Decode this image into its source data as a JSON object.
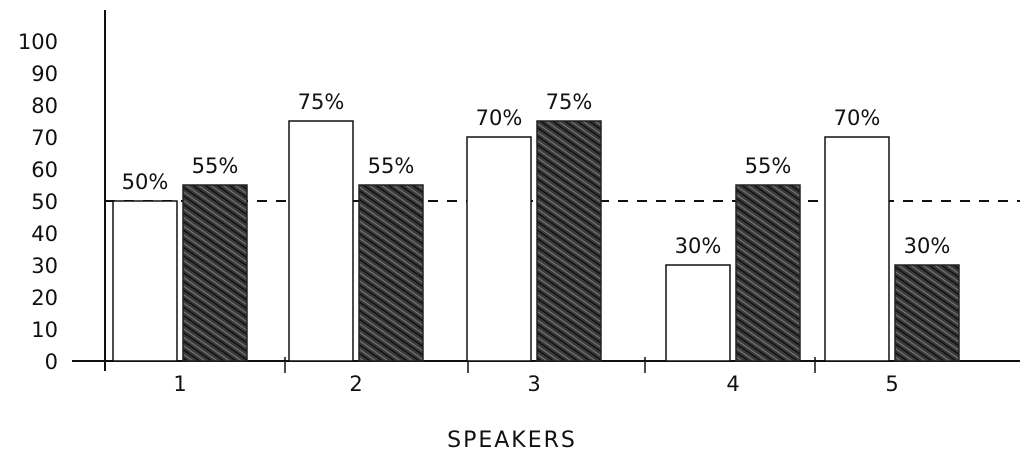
{
  "chart_data": {
    "type": "bar",
    "xlabel": "SPEAKERS",
    "ylabel": "",
    "ylim": [
      0,
      100
    ],
    "yticks": [
      0,
      10,
      20,
      30,
      40,
      50,
      60,
      70,
      80,
      90,
      100
    ],
    "categories": [
      "1",
      "2",
      "3",
      "4",
      "5"
    ],
    "series": [
      {
        "values": [
          50,
          75,
          70,
          30,
          70
        ],
        "labels": [
          "50%",
          "75%",
          "70%",
          "30%",
          "70%"
        ],
        "fill": "#ffffff",
        "style": "open"
      },
      {
        "values": [
          55,
          55,
          75,
          55,
          30
        ],
        "labels": [
          "55%",
          "55%",
          "75%",
          "55%",
          "30%"
        ],
        "fill": "#2b2b2b",
        "style": "hatched"
      }
    ],
    "reference_line": {
      "value": 50,
      "style": "dashed"
    },
    "grid": false,
    "legend": "none"
  }
}
